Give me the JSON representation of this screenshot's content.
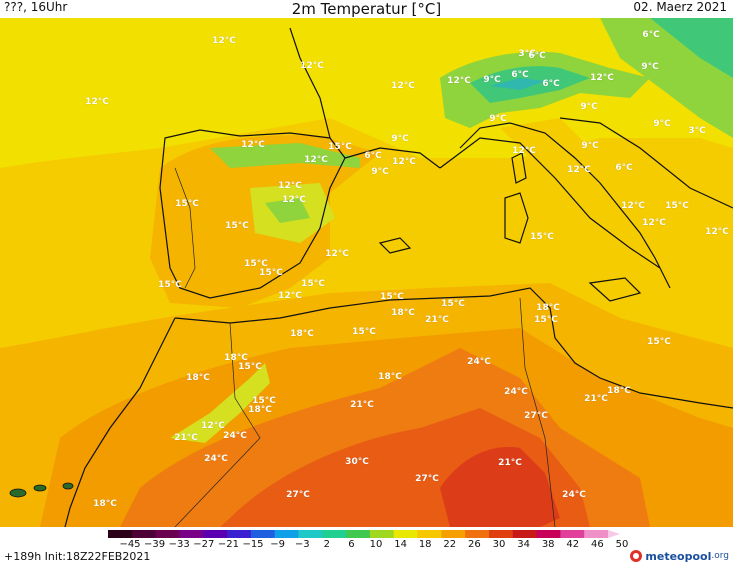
{
  "header": {
    "left": "???, 16Uhr",
    "title": "2m Temperatur [°C]",
    "date": "02. Maerz 2021"
  },
  "footer": {
    "run": "+189h  Init:18Z22FEB2021",
    "logo": "meteopool",
    "logo_suffix": ".org"
  },
  "colorbar": {
    "ticks": [
      "−45",
      "−39",
      "−33",
      "−27",
      "−21",
      "−15",
      "−9",
      "−3",
      "2",
      "6",
      "10",
      "14",
      "18",
      "22",
      "26",
      "30",
      "34",
      "38",
      "42",
      "46",
      "50"
    ],
    "colors": [
      "#2b0018",
      "#4d0035",
      "#6a004f",
      "#7a0088",
      "#5a00b0",
      "#3a20d0",
      "#2060e0",
      "#10a0e8",
      "#20c8c8",
      "#20d090",
      "#40c850",
      "#a0d820",
      "#e8e800",
      "#f5c800",
      "#f5a000",
      "#f07010",
      "#e04010",
      "#c81818",
      "#c8005a",
      "#e0409a",
      "#f090c8"
    ],
    "arrow_color": "#f8c8e8"
  },
  "map": {
    "colors": {
      "sea_12": "#f2e000",
      "sea_15": "#f5cc00",
      "warm_18": "#f5b400",
      "warm_21": "#f29c00",
      "hot_24": "#ef7c10",
      "hot_27": "#e85c14",
      "hot_30": "#dc3c18",
      "cool_9": "#d4e020",
      "cold_6": "#8fd43c",
      "cold_3": "#40c878",
      "icy_0": "#30b8b0",
      "coast": "#111111"
    },
    "labels": [
      {
        "text": "12°C"
      },
      {
        "text": "12°C"
      },
      {
        "text": "12°C"
      },
      {
        "text": "6°C"
      },
      {
        "text": "3°C"
      },
      {
        "text": "6°C"
      },
      {
        "text": "6°C"
      },
      {
        "text": "9°C"
      },
      {
        "text": "12°C"
      },
      {
        "text": "12°C"
      },
      {
        "text": "9°C"
      },
      {
        "text": "12°C"
      },
      {
        "text": "6°C"
      },
      {
        "text": "9°C"
      },
      {
        "text": "9°C"
      },
      {
        "text": "9°C"
      },
      {
        "text": "3°C"
      },
      {
        "text": "12°C"
      },
      {
        "text": "15°C"
      },
      {
        "text": "6°C"
      },
      {
        "text": "12°C"
      },
      {
        "text": "9°C"
      },
      {
        "text": "12°C"
      },
      {
        "text": "9°C"
      },
      {
        "text": "12°C"
      },
      {
        "text": "6°C"
      },
      {
        "text": "12°C"
      },
      {
        "text": "15°C"
      },
      {
        "text": "12°C"
      },
      {
        "text": "12°C"
      },
      {
        "text": "9°C"
      },
      {
        "text": "15°C"
      },
      {
        "text": "12°C"
      },
      {
        "text": "15°C"
      },
      {
        "text": "12°C"
      },
      {
        "text": "15°C"
      },
      {
        "text": "15°C"
      },
      {
        "text": "15°C"
      },
      {
        "text": "15°C"
      },
      {
        "text": "12°C"
      },
      {
        "text": "12°C"
      },
      {
        "text": "12°C"
      },
      {
        "text": "15°C"
      },
      {
        "text": "15°C"
      },
      {
        "text": "18°C"
      },
      {
        "text": "21°C"
      },
      {
        "text": "15°C"
      },
      {
        "text": "18°C"
      },
      {
        "text": "15°C"
      },
      {
        "text": "18°C"
      },
      {
        "text": "15°C"
      },
      {
        "text": "15°C"
      },
      {
        "text": "18°C"
      },
      {
        "text": "24°C"
      },
      {
        "text": "18°C"
      },
      {
        "text": "15°C"
      },
      {
        "text": "15°C"
      },
      {
        "text": "18°C"
      },
      {
        "text": "21°C"
      },
      {
        "text": "24°C"
      },
      {
        "text": "21°C"
      },
      {
        "text": "18°C"
      },
      {
        "text": "27°C"
      },
      {
        "text": "18°C"
      },
      {
        "text": "12°C"
      },
      {
        "text": "21°C"
      },
      {
        "text": "24°C"
      },
      {
        "text": "24°C"
      },
      {
        "text": "30°C"
      },
      {
        "text": "21°C"
      },
      {
        "text": "27°C"
      },
      {
        "text": "27°C"
      },
      {
        "text": "24°C"
      },
      {
        "text": "18°C"
      }
    ]
  }
}
